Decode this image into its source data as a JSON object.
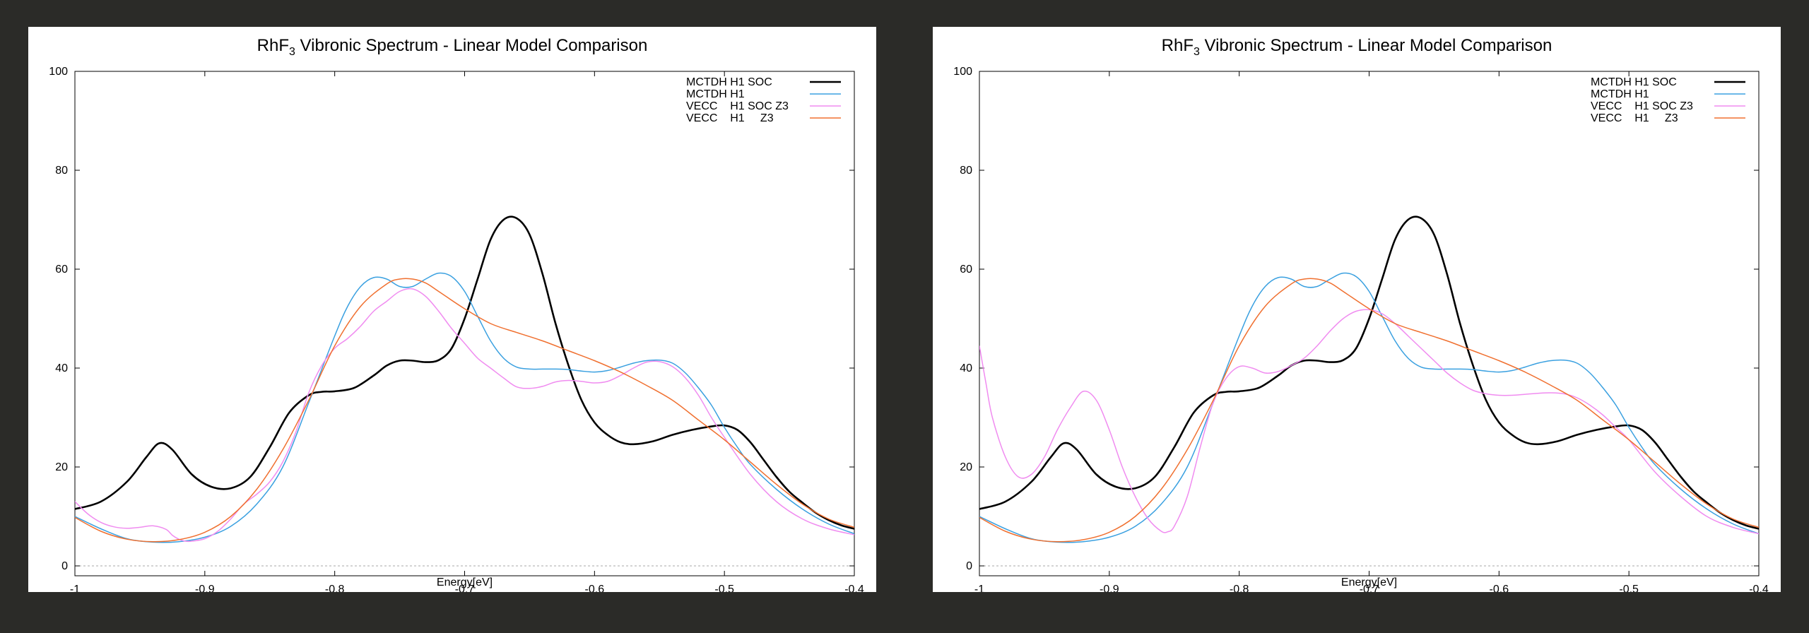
{
  "chart_data": [
    {
      "type": "line",
      "title_main": "RhF",
      "title_sub": "3",
      "title_rest": " Vibronic Spectrum - Linear Model Comparison",
      "xlabel": "Energy[eV]",
      "ylabel": "",
      "xlim": [
        -1,
        -0.4
      ],
      "ylim": [
        0,
        100
      ],
      "x_ticks": [
        "-1",
        "-0.9",
        "-0.8",
        "-0.7",
        "-0.6",
        "-0.5",
        "-0.4"
      ],
      "y_ticks": [
        "0",
        "20",
        "40",
        "60",
        "80",
        "100"
      ],
      "grid": false,
      "legend_position": "top-right",
      "series": [
        {
          "name": "MCTDH H1 SOC",
          "color": "#000000",
          "width": 2.6,
          "x": [
            -1,
            -0.98,
            -0.96,
            -0.945,
            -0.935,
            -0.925,
            -0.91,
            -0.895,
            -0.88,
            -0.865,
            -0.85,
            -0.835,
            -0.82,
            -0.81,
            -0.8,
            -0.785,
            -0.77,
            -0.76,
            -0.75,
            -0.74,
            -0.73,
            -0.72,
            -0.71,
            -0.7,
            -0.69,
            -0.68,
            -0.67,
            -0.66,
            -0.65,
            -0.64,
            -0.63,
            -0.62,
            -0.61,
            -0.6,
            -0.59,
            -0.58,
            -0.57,
            -0.555,
            -0.54,
            -0.525,
            -0.51,
            -0.5,
            -0.49,
            -0.48,
            -0.47,
            -0.46,
            -0.45,
            -0.44,
            -0.43,
            -0.42,
            -0.41,
            -0.4
          ],
          "y": [
            11.5,
            13,
            17,
            22,
            24.8,
            23.5,
            18.5,
            16,
            15.7,
            18,
            24,
            31,
            34.5,
            35.2,
            35.3,
            36,
            38.5,
            40.5,
            41.5,
            41.5,
            41.2,
            41.6,
            44,
            50,
            58,
            66,
            70,
            70.3,
            67,
            59,
            49,
            40.5,
            33.5,
            29,
            26.5,
            25,
            24.6,
            25.2,
            26.5,
            27.5,
            28.2,
            28.4,
            27.5,
            25,
            21.5,
            18,
            15,
            12.8,
            10.8,
            9.3,
            8.2,
            7.5
          ]
        },
        {
          "name": "MCTDH H1",
          "color": "#3aa0e0",
          "width": 1.5,
          "x": [
            -1,
            -0.98,
            -0.96,
            -0.94,
            -0.92,
            -0.9,
            -0.88,
            -0.86,
            -0.84,
            -0.82,
            -0.8,
            -0.79,
            -0.78,
            -0.77,
            -0.76,
            -0.75,
            -0.74,
            -0.73,
            -0.72,
            -0.71,
            -0.7,
            -0.69,
            -0.68,
            -0.67,
            -0.66,
            -0.65,
            -0.64,
            -0.63,
            -0.62,
            -0.61,
            -0.6,
            -0.59,
            -0.58,
            -0.57,
            -0.56,
            -0.55,
            -0.54,
            -0.53,
            -0.52,
            -0.51,
            -0.5,
            -0.49,
            -0.48,
            -0.46,
            -0.44,
            -0.42,
            -0.4
          ],
          "y": [
            10,
            7.5,
            5.5,
            4.8,
            4.9,
            5.8,
            8,
            12.5,
            20,
            33,
            46.5,
            52.5,
            56.5,
            58.3,
            58,
            56.5,
            56.5,
            58,
            59.2,
            58.5,
            55.5,
            50.5,
            45.5,
            42,
            40.2,
            39.8,
            39.8,
            39.8,
            39.7,
            39.4,
            39.2,
            39.5,
            40.2,
            41,
            41.5,
            41.6,
            41,
            39,
            36,
            32.5,
            28,
            24,
            20.5,
            15.5,
            11.5,
            8.5,
            6.5
          ]
        },
        {
          "name": "VECC    H1 SOC Z3",
          "color": "#f08cf0",
          "width": 1.5,
          "x": [
            -1,
            -0.99,
            -0.98,
            -0.97,
            -0.96,
            -0.95,
            -0.94,
            -0.93,
            -0.925,
            -0.92,
            -0.915,
            -0.91,
            -0.9,
            -0.89,
            -0.88,
            -0.87,
            -0.86,
            -0.85,
            -0.84,
            -0.83,
            -0.82,
            -0.81,
            -0.8,
            -0.79,
            -0.78,
            -0.77,
            -0.76,
            -0.75,
            -0.74,
            -0.73,
            -0.72,
            -0.71,
            -0.7,
            -0.69,
            -0.68,
            -0.67,
            -0.66,
            -0.65,
            -0.64,
            -0.63,
            -0.62,
            -0.61,
            -0.6,
            -0.59,
            -0.58,
            -0.57,
            -0.56,
            -0.55,
            -0.54,
            -0.53,
            -0.52,
            -0.51,
            -0.5,
            -0.48,
            -0.46,
            -0.44,
            -0.42,
            -0.4
          ],
          "y": [
            13,
            10.5,
            8.8,
            7.9,
            7.6,
            7.8,
            8.1,
            7.4,
            6.2,
            5.4,
            5,
            5,
            5.5,
            7,
            9.5,
            12.5,
            14.5,
            17,
            21,
            27,
            35,
            40.5,
            44,
            46,
            48.5,
            51.5,
            53.5,
            55.5,
            56,
            54.5,
            51.5,
            48,
            45,
            42,
            40,
            38,
            36.2,
            35.9,
            36.3,
            37.2,
            37.5,
            37.3,
            37,
            37.3,
            38.5,
            40,
            41.2,
            41.3,
            40.3,
            38,
            34.5,
            30,
            26,
            18.5,
            13,
            9.5,
            7.5,
            6.3
          ]
        },
        {
          "name": "VECC    H1     Z3",
          "color": "#f07030",
          "width": 1.5,
          "x": [
            -1,
            -0.98,
            -0.96,
            -0.94,
            -0.92,
            -0.9,
            -0.88,
            -0.86,
            -0.84,
            -0.82,
            -0.8,
            -0.78,
            -0.76,
            -0.75,
            -0.74,
            -0.73,
            -0.72,
            -0.7,
            -0.68,
            -0.66,
            -0.64,
            -0.62,
            -0.6,
            -0.58,
            -0.56,
            -0.54,
            -0.52,
            -0.5,
            -0.48,
            -0.46,
            -0.44,
            -0.42,
            -0.4
          ],
          "y": [
            9.8,
            7,
            5.4,
            4.9,
            5.3,
            6.8,
            10,
            15.5,
            23.5,
            33.5,
            44.5,
            52.5,
            57,
            58,
            58,
            57.2,
            55.5,
            52,
            49,
            47.2,
            45.5,
            43.5,
            41.5,
            39.2,
            36.5,
            33.5,
            29.5,
            25.5,
            21,
            16.5,
            12.5,
            9.5,
            7.8
          ]
        }
      ]
    },
    {
      "type": "line",
      "title_main": "RhF",
      "title_sub": "3",
      "title_rest": " Vibronic Spectrum - Linear Model Comparison",
      "xlabel": "Energy[eV]",
      "ylabel": "",
      "xlim": [
        -1,
        -0.4
      ],
      "ylim": [
        0,
        100
      ],
      "x_ticks": [
        "-1",
        "-0.9",
        "-0.8",
        "-0.7",
        "-0.6",
        "-0.5",
        "-0.4"
      ],
      "y_ticks": [
        "0",
        "20",
        "40",
        "60",
        "80",
        "100"
      ],
      "grid": false,
      "legend_position": "top-right",
      "series": [
        {
          "name": "MCTDH H1 SOC",
          "color": "#000000",
          "width": 2.6,
          "x": [
            -1,
            -0.98,
            -0.96,
            -0.945,
            -0.935,
            -0.925,
            -0.91,
            -0.895,
            -0.88,
            -0.865,
            -0.85,
            -0.835,
            -0.82,
            -0.81,
            -0.8,
            -0.785,
            -0.77,
            -0.76,
            -0.75,
            -0.74,
            -0.73,
            -0.72,
            -0.71,
            -0.7,
            -0.69,
            -0.68,
            -0.67,
            -0.66,
            -0.65,
            -0.64,
            -0.63,
            -0.62,
            -0.61,
            -0.6,
            -0.59,
            -0.58,
            -0.57,
            -0.555,
            -0.54,
            -0.525,
            -0.51,
            -0.5,
            -0.49,
            -0.48,
            -0.47,
            -0.46,
            -0.45,
            -0.44,
            -0.43,
            -0.42,
            -0.41,
            -0.4
          ],
          "y": [
            11.5,
            13,
            17,
            22,
            24.8,
            23.5,
            18.5,
            16,
            15.7,
            18,
            24,
            31,
            34.5,
            35.2,
            35.3,
            36,
            38.5,
            40.5,
            41.5,
            41.5,
            41.2,
            41.6,
            44,
            50,
            58,
            66,
            70,
            70.3,
            67,
            59,
            49,
            40.5,
            33.5,
            29,
            26.5,
            25,
            24.6,
            25.2,
            26.5,
            27.5,
            28.2,
            28.4,
            27.5,
            25,
            21.5,
            18,
            15,
            12.8,
            10.8,
            9.3,
            8.2,
            7.5
          ]
        },
        {
          "name": "MCTDH H1",
          "color": "#3aa0e0",
          "width": 1.5,
          "x": [
            -1,
            -0.98,
            -0.96,
            -0.94,
            -0.92,
            -0.9,
            -0.88,
            -0.86,
            -0.84,
            -0.82,
            -0.8,
            -0.79,
            -0.78,
            -0.77,
            -0.76,
            -0.75,
            -0.74,
            -0.73,
            -0.72,
            -0.71,
            -0.7,
            -0.69,
            -0.68,
            -0.67,
            -0.66,
            -0.65,
            -0.64,
            -0.63,
            -0.62,
            -0.61,
            -0.6,
            -0.59,
            -0.58,
            -0.57,
            -0.56,
            -0.55,
            -0.54,
            -0.53,
            -0.52,
            -0.51,
            -0.5,
            -0.49,
            -0.48,
            -0.46,
            -0.44,
            -0.42,
            -0.4
          ],
          "y": [
            10,
            7.5,
            5.5,
            4.8,
            4.9,
            5.8,
            8,
            12.5,
            20,
            33,
            46.5,
            52.5,
            56.5,
            58.3,
            58,
            56.5,
            56.5,
            58,
            59.2,
            58.5,
            55.5,
            50.5,
            45.5,
            42,
            40.2,
            39.8,
            39.8,
            39.8,
            39.7,
            39.4,
            39.2,
            39.5,
            40.2,
            41,
            41.5,
            41.6,
            41,
            39,
            36,
            32.5,
            28,
            24,
            20.5,
            15.5,
            11.5,
            8.5,
            6.5
          ]
        },
        {
          "name": "VECC    H1 SOC Z3",
          "color": "#f08cf0",
          "width": 1.5,
          "x": [
            -1,
            -0.995,
            -0.99,
            -0.98,
            -0.97,
            -0.96,
            -0.95,
            -0.94,
            -0.93,
            -0.92,
            -0.91,
            -0.9,
            -0.89,
            -0.88,
            -0.87,
            -0.86,
            -0.855,
            -0.85,
            -0.84,
            -0.83,
            -0.82,
            -0.81,
            -0.8,
            -0.79,
            -0.78,
            -0.77,
            -0.76,
            -0.75,
            -0.74,
            -0.73,
            -0.72,
            -0.71,
            -0.7,
            -0.69,
            -0.68,
            -0.67,
            -0.66,
            -0.65,
            -0.64,
            -0.63,
            -0.62,
            -0.61,
            -0.6,
            -0.59,
            -0.58,
            -0.57,
            -0.56,
            -0.55,
            -0.54,
            -0.53,
            -0.52,
            -0.51,
            -0.5,
            -0.48,
            -0.46,
            -0.44,
            -0.42,
            -0.4
          ],
          "y": [
            44.5,
            37,
            30,
            22,
            18,
            18.5,
            22,
            27.5,
            32,
            35.3,
            33.5,
            27.5,
            20,
            14,
            9.5,
            7,
            6.9,
            8,
            14,
            24,
            33,
            38,
            40.3,
            40,
            39,
            39.3,
            40.5,
            42,
            44.5,
            47.5,
            50,
            51.5,
            51.8,
            51,
            49,
            46.5,
            44,
            41.5,
            39,
            37,
            35.5,
            34.8,
            34.5,
            34.5,
            34.7,
            34.9,
            35,
            34.8,
            34,
            32.5,
            30.5,
            28,
            25.5,
            19,
            14,
            10,
            7.8,
            6.5
          ]
        },
        {
          "name": "VECC    H1     Z3",
          "color": "#f07030",
          "width": 1.5,
          "x": [
            -1,
            -0.98,
            -0.96,
            -0.94,
            -0.92,
            -0.9,
            -0.88,
            -0.86,
            -0.84,
            -0.82,
            -0.8,
            -0.78,
            -0.76,
            -0.75,
            -0.74,
            -0.73,
            -0.72,
            -0.7,
            -0.68,
            -0.66,
            -0.64,
            -0.62,
            -0.6,
            -0.58,
            -0.56,
            -0.54,
            -0.52,
            -0.5,
            -0.48,
            -0.46,
            -0.44,
            -0.42,
            -0.4
          ],
          "y": [
            9.8,
            7,
            5.4,
            4.9,
            5.3,
            6.8,
            10,
            15.5,
            23.5,
            33.5,
            44.5,
            52.5,
            57,
            58,
            58,
            57.2,
            55.5,
            52,
            49,
            47.2,
            45.5,
            43.5,
            41.5,
            39.2,
            36.5,
            33.5,
            29.5,
            25.5,
            21,
            16.5,
            12.5,
            9.5,
            7.8
          ]
        }
      ]
    }
  ]
}
